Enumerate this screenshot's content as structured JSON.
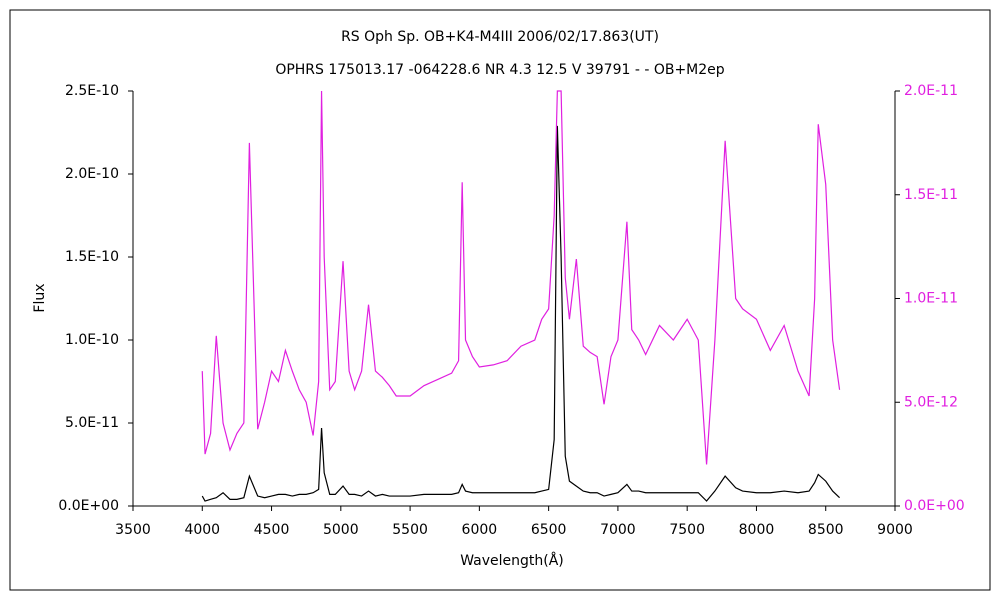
{
  "chart_data": {
    "type": "line",
    "title": "RS Oph    Sp. OB+K4-M4III   2006/02/17.863(UT)",
    "subtitle": "OPHRS 175013.17 -064228.6 NR 4.3 12.5 V 39791 - - OB+M2ep",
    "x_label": "Wavelength(Å)",
    "y_label": "Flux",
    "x": [
      4000,
      4020,
      4060,
      4101,
      4150,
      4200,
      4250,
      4300,
      4340,
      4400,
      4450,
      4500,
      4550,
      4600,
      4650,
      4700,
      4750,
      4800,
      4840,
      4861,
      4880,
      4920,
      4960,
      5016,
      5060,
      5100,
      5150,
      5200,
      5250,
      5300,
      5350,
      5400,
      5500,
      5600,
      5700,
      5800,
      5850,
      5876,
      5900,
      5950,
      6000,
      6100,
      6200,
      6300,
      6400,
      6450,
      6500,
      6540,
      6563,
      6590,
      6620,
      6650,
      6700,
      6750,
      6800,
      6850,
      6900,
      6950,
      7000,
      7065,
      7100,
      7150,
      7200,
      7300,
      7400,
      7500,
      7580,
      7640,
      7700,
      7774,
      7850,
      7900,
      8000,
      8100,
      8200,
      8300,
      8380,
      8420,
      8446,
      8500,
      8550,
      8600
    ],
    "series": [
      {
        "color": "#000000",
        "values": [
          6e-12,
          3e-12,
          4e-12,
          5e-12,
          8e-12,
          4e-12,
          4e-12,
          5e-12,
          1.8e-11,
          6e-12,
          5e-12,
          6e-12,
          7e-12,
          7e-12,
          6e-12,
          7e-12,
          7e-12,
          8e-12,
          1e-11,
          4.7e-11,
          2e-11,
          7e-12,
          7e-12,
          1.2e-11,
          7e-12,
          7e-12,
          6e-12,
          9e-12,
          6e-12,
          7e-12,
          6e-12,
          6e-12,
          6e-12,
          7e-12,
          7e-12,
          7e-12,
          8e-12,
          1.3e-11,
          9e-12,
          8e-12,
          8e-12,
          8e-12,
          8e-12,
          8e-12,
          8e-12,
          9e-12,
          1e-11,
          4e-11,
          2.29e-10,
          1.5e-10,
          3e-11,
          1.5e-11,
          1.2e-11,
          9e-12,
          8e-12,
          8e-12,
          6e-12,
          7e-12,
          8e-12,
          1.3e-11,
          9e-12,
          9e-12,
          8e-12,
          8e-12,
          8e-12,
          8e-12,
          8e-12,
          3e-12,
          9e-12,
          1.8e-11,
          1.1e-11,
          9e-12,
          8e-12,
          8e-12,
          9e-12,
          8e-12,
          9e-12,
          1.4e-11,
          1.9e-11,
          1.5e-11,
          9e-12,
          5e-12
        ]
      },
      {
        "color": "#e020e0",
        "axis": "y2",
        "values": [
          6.5e-12,
          2.5e-12,
          3.5e-12,
          8.2e-12,
          4e-12,
          2.7e-12,
          3.5e-12,
          4e-12,
          1.75e-11,
          3.7e-12,
          5e-12,
          6.5e-12,
          6e-12,
          7.5e-12,
          6.5e-12,
          5.6e-12,
          5e-12,
          3.4e-12,
          6e-12,
          2e-11,
          1.2e-11,
          5.6e-12,
          6e-12,
          1.18e-11,
          6.5e-12,
          5.6e-12,
          6.5e-12,
          9.7e-12,
          6.5e-12,
          6.2e-12,
          5.8e-12,
          5.3e-12,
          5.3e-12,
          5.8e-12,
          6.1e-12,
          6.4e-12,
          7e-12,
          1.56e-11,
          8e-12,
          7.2e-12,
          6.7e-12,
          6.8e-12,
          7e-12,
          7.7e-12,
          8e-12,
          9e-12,
          9.5e-12,
          1.4e-11,
          2e-11,
          2e-11,
          1.1e-11,
          9e-12,
          1.19e-11,
          7.7e-12,
          7.4e-12,
          7.2e-12,
          4.9e-12,
          7.2e-12,
          8e-12,
          1.37e-11,
          8.5e-12,
          8e-12,
          7.3e-12,
          8.7e-12,
          8e-12,
          9e-12,
          8e-12,
          2e-12,
          8e-12,
          1.76e-11,
          1e-11,
          9.5e-12,
          9e-12,
          7.5e-12,
          8.7e-12,
          6.5e-12,
          5.3e-12,
          1e-11,
          1.84e-11,
          1.55e-11,
          8e-12,
          5.6e-12
        ]
      }
    ],
    "xlim": [
      3500,
      9000
    ],
    "xticks": [
      3500,
      4000,
      4500,
      5000,
      5500,
      6000,
      6500,
      7000,
      7500,
      8000,
      8500,
      9000
    ],
    "ylim": [
      0,
      2.5e-10
    ],
    "yticks": [
      {
        "value": 0,
        "label": "0.0E+00"
      },
      {
        "value": 5e-11,
        "label": "5.0E-11"
      },
      {
        "value": 1e-10,
        "label": "1.0E-10"
      },
      {
        "value": 1.5e-10,
        "label": "1.5E-10"
      },
      {
        "value": 2e-10,
        "label": "2.0E-10"
      },
      {
        "value": 2.5e-10,
        "label": "2.5E-10"
      }
    ],
    "y2lim": [
      0,
      2e-11
    ],
    "y2ticks": [
      {
        "value": 0,
        "label": "0.0E+00"
      },
      {
        "value": 5e-12,
        "label": "5.0E-12"
      },
      {
        "value": 1e-11,
        "label": "1.0E-11"
      },
      {
        "value": 1.5e-11,
        "label": "1.5E-11"
      },
      {
        "value": 2e-11,
        "label": "2.0E-11"
      }
    ],
    "y2_tick_color": "#e020e0"
  }
}
